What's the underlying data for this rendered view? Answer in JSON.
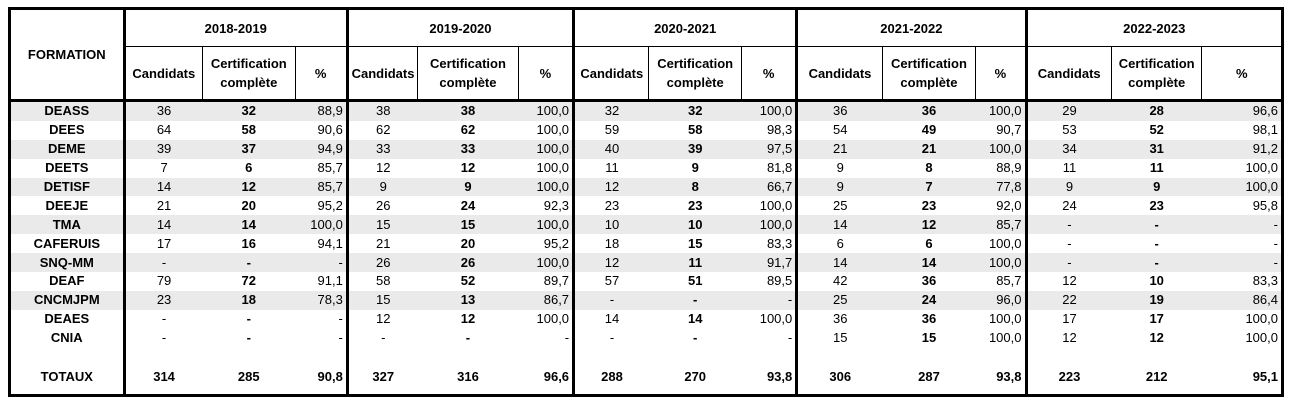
{
  "formation_header": "FORMATION",
  "sub_headers": {
    "candidats": "Candidats",
    "certification": "Certification complète",
    "pct": "%"
  },
  "years": [
    "2018-2019",
    "2019-2020",
    "2020-2021",
    "2021-2022",
    "2022-2023"
  ],
  "rows": [
    {
      "name": "DEASS",
      "shade": true,
      "cells": [
        [
          "36",
          "32",
          "88,9"
        ],
        [
          "38",
          "38",
          "100,0"
        ],
        [
          "32",
          "32",
          "100,0"
        ],
        [
          "36",
          "36",
          "100,0"
        ],
        [
          "29",
          "28",
          "96,6"
        ]
      ]
    },
    {
      "name": "DEES",
      "shade": false,
      "cells": [
        [
          "64",
          "58",
          "90,6"
        ],
        [
          "62",
          "62",
          "100,0"
        ],
        [
          "59",
          "58",
          "98,3"
        ],
        [
          "54",
          "49",
          "90,7"
        ],
        [
          "53",
          "52",
          "98,1"
        ]
      ]
    },
    {
      "name": "DEME",
      "shade": true,
      "cells": [
        [
          "39",
          "37",
          "94,9"
        ],
        [
          "33",
          "33",
          "100,0"
        ],
        [
          "40",
          "39",
          "97,5"
        ],
        [
          "21",
          "21",
          "100,0"
        ],
        [
          "34",
          "31",
          "91,2"
        ]
      ]
    },
    {
      "name": "DEETS",
      "shade": false,
      "cells": [
        [
          "7",
          "6",
          "85,7"
        ],
        [
          "12",
          "12",
          "100,0"
        ],
        [
          "11",
          "9",
          "81,8"
        ],
        [
          "9",
          "8",
          "88,9"
        ],
        [
          "11",
          "11",
          "100,0"
        ]
      ]
    },
    {
      "name": "DETISF",
      "shade": true,
      "cells": [
        [
          "14",
          "12",
          "85,7"
        ],
        [
          "9",
          "9",
          "100,0"
        ],
        [
          "12",
          "8",
          "66,7"
        ],
        [
          "9",
          "7",
          "77,8"
        ],
        [
          "9",
          "9",
          "100,0"
        ]
      ]
    },
    {
      "name": "DEEJE",
      "shade": false,
      "cells": [
        [
          "21",
          "20",
          "95,2"
        ],
        [
          "26",
          "24",
          "92,3"
        ],
        [
          "23",
          "23",
          "100,0"
        ],
        [
          "25",
          "23",
          "92,0"
        ],
        [
          "24",
          "23",
          "95,8"
        ]
      ]
    },
    {
      "name": "TMA",
      "shade": true,
      "cells": [
        [
          "14",
          "14",
          "100,0"
        ],
        [
          "15",
          "15",
          "100,0"
        ],
        [
          "10",
          "10",
          "100,0"
        ],
        [
          "14",
          "12",
          "85,7"
        ],
        [
          "-",
          "-",
          "-"
        ]
      ]
    },
    {
      "name": "CAFERUIS",
      "shade": false,
      "cells": [
        [
          "17",
          "16",
          "94,1"
        ],
        [
          "21",
          "20",
          "95,2"
        ],
        [
          "18",
          "15",
          "83,3"
        ],
        [
          "6",
          "6",
          "100,0"
        ],
        [
          "-",
          "-",
          "-"
        ]
      ]
    },
    {
      "name": "SNQ-MM",
      "shade": true,
      "cells": [
        [
          "-",
          "-",
          "-"
        ],
        [
          "26",
          "26",
          "100,0"
        ],
        [
          "12",
          "11",
          "91,7"
        ],
        [
          "14",
          "14",
          "100,0"
        ],
        [
          "-",
          "-",
          "-"
        ]
      ]
    },
    {
      "name": "DEAF",
      "shade": false,
      "cells": [
        [
          "79",
          "72",
          "91,1"
        ],
        [
          "58",
          "52",
          "89,7"
        ],
        [
          "57",
          "51",
          "89,5"
        ],
        [
          "42",
          "36",
          "85,7"
        ],
        [
          "12",
          "10",
          "83,3"
        ]
      ]
    },
    {
      "name": "CNCMJPM",
      "shade": true,
      "cells": [
        [
          "23",
          "18",
          "78,3"
        ],
        [
          "15",
          "13",
          "86,7"
        ],
        [
          "-",
          "-",
          "-"
        ],
        [
          "25",
          "24",
          "96,0"
        ],
        [
          "22",
          "19",
          "86,4"
        ]
      ]
    },
    {
      "name": "DEAES",
      "shade": false,
      "cells": [
        [
          "-",
          "-",
          "-"
        ],
        [
          "12",
          "12",
          "100,0"
        ],
        [
          "14",
          "14",
          "100,0"
        ],
        [
          "36",
          "36",
          "100,0"
        ],
        [
          "17",
          "17",
          "100,0"
        ]
      ]
    },
    {
      "name": "CNIA",
      "shade": false,
      "cells": [
        [
          "-",
          "-",
          "-"
        ],
        [
          "-",
          "-",
          "-"
        ],
        [
          "-",
          "-",
          "-"
        ],
        [
          "15",
          "15",
          "100,0"
        ],
        [
          "12",
          "12",
          "100,0"
        ]
      ]
    }
  ],
  "totals": {
    "name": "TOTAUX",
    "cells": [
      [
        "314",
        "285",
        "90,8"
      ],
      [
        "327",
        "316",
        "96,6"
      ],
      [
        "288",
        "270",
        "93,8"
      ],
      [
        "306",
        "287",
        "93,8"
      ],
      [
        "223",
        "212",
        "95,1"
      ]
    ]
  }
}
